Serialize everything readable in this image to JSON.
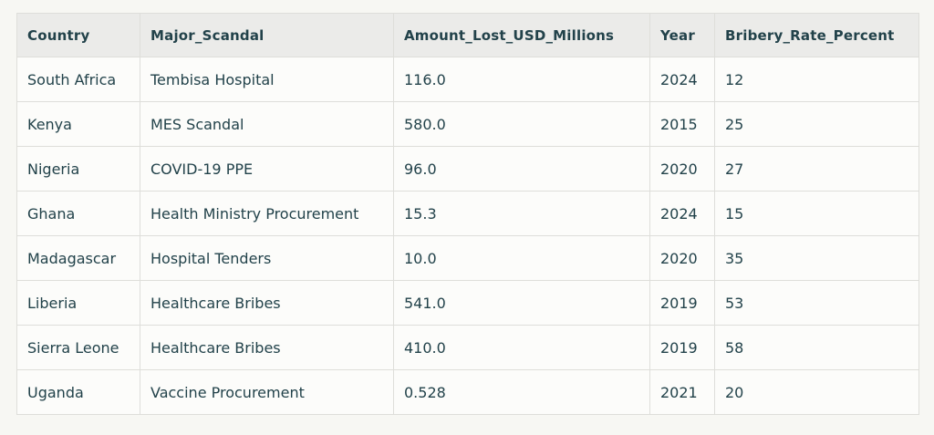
{
  "table": {
    "columns": [
      "Country",
      "Major_Scandal",
      "Amount_Lost_USD_Millions",
      "Year",
      "Bribery_Rate_Percent"
    ],
    "rows": [
      {
        "country": "South Africa",
        "scandal": "Tembisa Hospital",
        "amount": "116.0",
        "year": "2024",
        "bribery": "12"
      },
      {
        "country": "Kenya",
        "scandal": "MES Scandal",
        "amount": "580.0",
        "year": "2015",
        "bribery": "25"
      },
      {
        "country": "Nigeria",
        "scandal": "COVID-19 PPE",
        "amount": "96.0",
        "year": "2020",
        "bribery": "27"
      },
      {
        "country": "Ghana",
        "scandal": "Health Ministry Procurement",
        "amount": "15.3",
        "year": "2024",
        "bribery": "15"
      },
      {
        "country": "Madagascar",
        "scandal": "Hospital Tenders",
        "amount": "10.0",
        "year": "2020",
        "bribery": "35"
      },
      {
        "country": "Liberia",
        "scandal": "Healthcare Bribes",
        "amount": "541.0",
        "year": "2019",
        "bribery": "53"
      },
      {
        "country": "Sierra Leone",
        "scandal": "Healthcare Bribes",
        "amount": "410.0",
        "year": "2019",
        "bribery": "58"
      },
      {
        "country": "Uganda",
        "scandal": "Vaccine Procurement",
        "amount": "0.528",
        "year": "2021",
        "bribery": "20"
      }
    ]
  },
  "colors": {
    "page_background": "#f7f7f3",
    "header_background": "#ebebe9",
    "cell_background": "#fcfcfa",
    "border": "#dededa",
    "text": "#22424a"
  }
}
